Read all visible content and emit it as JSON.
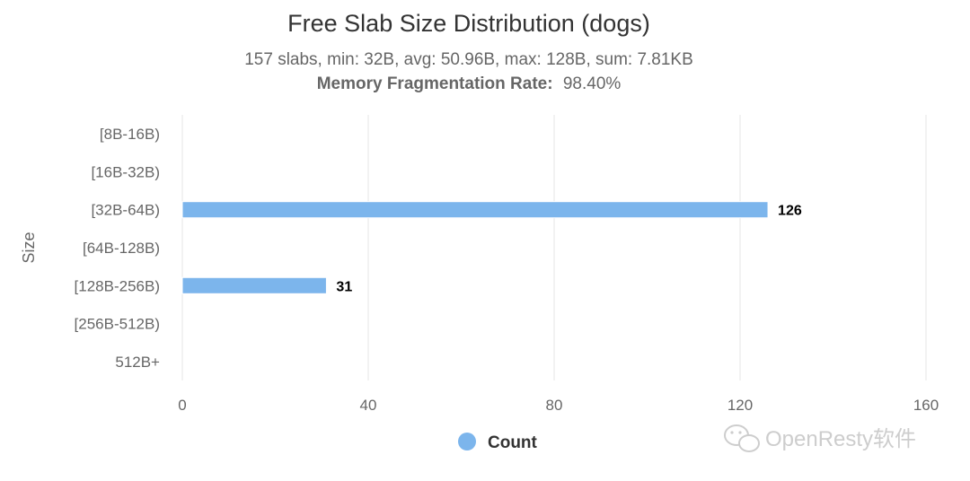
{
  "chart_data": {
    "type": "bar",
    "orientation": "horizontal",
    "title": "Free Slab Size Distribution (dogs)",
    "subtitle": "157 slabs, min: 32B, avg: 50.96B, max: 128B, sum: 7.81KB",
    "fragmentation_label": "Memory Fragmentation Rate:",
    "fragmentation_value": "98.40%",
    "ylabel": "Size",
    "xlabel": "",
    "categories": [
      "[8B-16B)",
      "[16B-32B)",
      "[32B-64B)",
      "[64B-128B)",
      "[128B-256B)",
      "[256B-512B)",
      "512B+"
    ],
    "series": [
      {
        "name": "Count",
        "values": [
          0,
          0,
          126,
          0,
          31,
          0,
          0
        ],
        "color": "#7cb5ec"
      }
    ],
    "xlim": [
      0,
      160
    ],
    "x_ticks": [
      0,
      40,
      80,
      120,
      160
    ],
    "grid": true,
    "data_labels": true,
    "legend_position": "bottom-center"
  },
  "watermark": {
    "text": "OpenResty软件",
    "icon": "wechat-icon"
  }
}
